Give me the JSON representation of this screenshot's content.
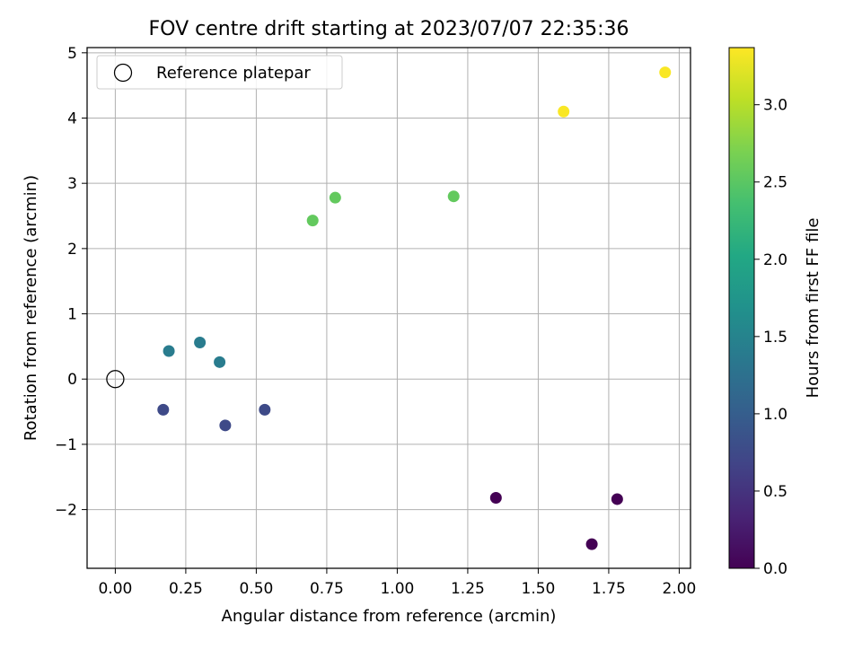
{
  "chart_data": {
    "type": "scatter",
    "title": "FOV centre drift starting at 2023/07/07 22:35:36",
    "xlabel": "Angular distance from reference (arcmin)",
    "ylabel": "Rotation from reference (arcmin)",
    "xlim": [
      -0.1,
      2.04
    ],
    "ylim": [
      -2.9,
      5.08
    ],
    "xticks": [
      0.0,
      0.25,
      0.5,
      0.75,
      1.0,
      1.25,
      1.5,
      1.75,
      2.0
    ],
    "xtick_labels": [
      "0.00",
      "0.25",
      "0.50",
      "0.75",
      "1.00",
      "1.25",
      "1.50",
      "1.75",
      "2.00"
    ],
    "yticks": [
      -2,
      -1,
      0,
      1,
      2,
      3,
      4,
      5
    ],
    "ytick_labels": [
      "−2",
      "−1",
      "0",
      "1",
      "2",
      "3",
      "4",
      "5"
    ],
    "grid": true,
    "legend": {
      "placement": "top-left",
      "entries": [
        "Reference platepar"
      ]
    },
    "reference_point": {
      "x": 0.0,
      "y": 0.0,
      "label": "Reference platepar"
    },
    "points": [
      {
        "x": 1.35,
        "y": -1.82,
        "hours": 0.0
      },
      {
        "x": 1.69,
        "y": -2.53,
        "hours": 0.0
      },
      {
        "x": 1.78,
        "y": -1.84,
        "hours": 0.0
      },
      {
        "x": 0.17,
        "y": -0.47,
        "hours": 0.75
      },
      {
        "x": 0.39,
        "y": -0.71,
        "hours": 0.75
      },
      {
        "x": 0.53,
        "y": -0.47,
        "hours": 0.75
      },
      {
        "x": 0.19,
        "y": 0.43,
        "hours": 1.4
      },
      {
        "x": 0.3,
        "y": 0.56,
        "hours": 1.4
      },
      {
        "x": 0.37,
        "y": 0.26,
        "hours": 1.4
      },
      {
        "x": 0.7,
        "y": 2.43,
        "hours": 2.55
      },
      {
        "x": 0.78,
        "y": 2.78,
        "hours": 2.55
      },
      {
        "x": 1.2,
        "y": 2.8,
        "hours": 2.55
      },
      {
        "x": 1.59,
        "y": 4.1,
        "hours": 3.35
      },
      {
        "x": 1.95,
        "y": 4.7,
        "hours": 3.35
      }
    ],
    "colorbar": {
      "label": "Hours from first FF file",
      "colormap": "viridis",
      "range": [
        0.0,
        3.37
      ],
      "ticks": [
        0.0,
        0.5,
        1.0,
        1.5,
        2.0,
        2.5,
        3.0
      ],
      "tick_labels": [
        "0.0",
        "0.5",
        "1.0",
        "1.5",
        "2.0",
        "2.5",
        "3.0"
      ]
    }
  }
}
